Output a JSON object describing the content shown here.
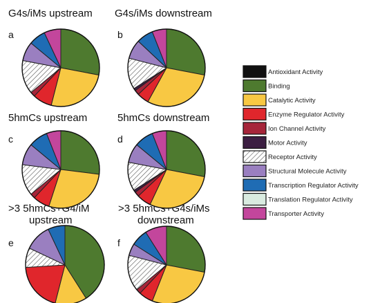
{
  "chart_data": [
    {
      "type": "pie",
      "panel": "a",
      "title": "G4s/iMs upstream",
      "categories": [
        "Binding",
        "Catalytic Activity",
        "Enzyme Regulator Activity",
        "Ion Channel Activity",
        "Receptor Activity",
        "Structural Molecule Activity",
        "Transcription Regulator Activity",
        "Transporter Activity"
      ],
      "values": [
        28,
        26,
        8,
        2,
        14,
        8,
        7,
        7
      ]
    },
    {
      "type": "pie",
      "panel": "b",
      "title": "G4s/iMs downstream",
      "categories": [
        "Binding",
        "Catalytic Activity",
        "Enzyme Regulator Activity",
        "Ion Channel Activity",
        "Motor Activity",
        "Receptor Activity",
        "Structural Molecule Activity",
        "Transcription Regulator Activity",
        "Transporter Activity"
      ],
      "values": [
        28,
        30,
        5,
        2,
        1,
        13,
        8,
        7,
        6
      ]
    },
    {
      "type": "pie",
      "panel": "c",
      "title": "5hmCs upstream",
      "categories": [
        "Binding",
        "Catalytic Activity",
        "Enzyme Regulator Activity",
        "Ion Channel Activity",
        "Receptor Activity",
        "Structural Molecule Activity",
        "Transcription Regulator Activity",
        "Transporter Activity"
      ],
      "values": [
        27,
        28,
        7,
        2,
        13,
        9,
        8,
        6
      ]
    },
    {
      "type": "pie",
      "panel": "d",
      "title": "5hmCs downstream",
      "categories": [
        "Binding",
        "Catalytic Activity",
        "Enzyme Regulator Activity",
        "Ion Channel Activity",
        "Motor Activity",
        "Receptor Activity",
        "Structural Molecule Activity",
        "Transcription Regulator Activity",
        "Transporter Activity"
      ],
      "values": [
        28,
        29,
        6,
        2,
        1,
        12,
        8,
        8,
        6
      ]
    },
    {
      "type": "pie",
      "panel": "e",
      "title": ">3 5hmCs+G4/iM upstream",
      "categories": [
        "Binding",
        "Catalytic Activity",
        "Enzyme Regulator Activity",
        "Receptor Activity",
        "Structural Molecule Activity",
        "Transcription Regulator Activity"
      ],
      "values": [
        41,
        13,
        20,
        8,
        11,
        7
      ]
    },
    {
      "type": "pie",
      "panel": "f",
      "title": ">3 5hmCs+G4s/iMs downstream",
      "categories": [
        "Binding",
        "Catalytic Activity",
        "Enzyme Regulator Activity",
        "Ion Channel Activity",
        "Receptor Activity",
        "Structural Molecule Activity",
        "Transcription Regulator Activity",
        "Transporter Activity"
      ],
      "values": [
        28,
        28,
        6,
        2,
        15,
        5,
        7,
        9
      ]
    }
  ],
  "legend": {
    "items": [
      {
        "label": "Antioxidant Activity",
        "color": "#111111",
        "pattern": "solid"
      },
      {
        "label": "Binding",
        "color": "#4e7a2f",
        "pattern": "solid"
      },
      {
        "label": "Catalytic Activity",
        "color": "#f8c843",
        "pattern": "solid"
      },
      {
        "label": "Enzyme Regulator Activity",
        "color": "#e0262c",
        "pattern": "solid"
      },
      {
        "label": "Ion Channel Activity",
        "color": "#a6253a",
        "pattern": "solid"
      },
      {
        "label": "Motor Activity",
        "color": "#3c1e42",
        "pattern": "solid"
      },
      {
        "label": "Receptor Activity",
        "color": "#ffffff",
        "pattern": "hatch"
      },
      {
        "label": "Structural Molecule Activity",
        "color": "#9a7fc0",
        "pattern": "solid"
      },
      {
        "label": "Transcription Regulator Activity",
        "color": "#1f6cb4",
        "pattern": "solid"
      },
      {
        "label": "Translation Regulator Activity",
        "color": "#d9ebe0",
        "pattern": "solid"
      },
      {
        "label": "Transporter Activity",
        "color": "#c3469c",
        "pattern": "solid"
      }
    ]
  }
}
